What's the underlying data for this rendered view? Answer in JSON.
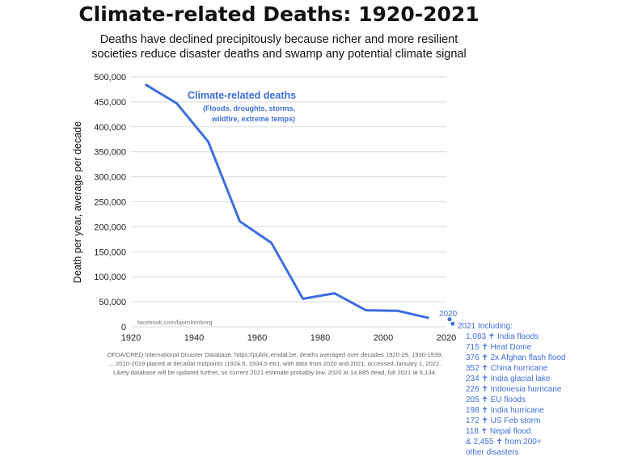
{
  "colors": {
    "series": "#3d6ee0",
    "grid": "#d9d9d9",
    "text": "#111111"
  },
  "chart_data": {
    "type": "line",
    "title": "Climate-related Deaths: 1920-2021",
    "subtitle": [
      "Deaths have declined precipitously because richer and more resilient",
      "societies reduce disaster deaths and swamp any potential climate signal"
    ],
    "ylabel": "Death per year, average per decade",
    "xlabel": "",
    "xlim": [
      1920,
      2020
    ],
    "ylim": [
      0,
      500000
    ],
    "grid": true,
    "x_ticks": [
      "1920",
      "1940",
      "1960",
      "1980",
      "2000",
      "2020"
    ],
    "y_ticks": [
      "0",
      "50,000",
      "100,000",
      "150,000",
      "200,000",
      "250,000",
      "300,000",
      "350,000",
      "400,000",
      "450,000",
      "500,000"
    ],
    "series": [
      {
        "name": "Climate-related deaths",
        "description": [
          "(Floods, droughts, storms,",
          "wildfire, extreme temps)"
        ],
        "x": [
          1924.5,
          1934.5,
          1944.5,
          1954.5,
          1964.5,
          1974.5,
          1984.5,
          1994.5,
          2004.5,
          2014.5
        ],
        "y": [
          485000,
          447000,
          370000,
          211000,
          168000,
          56000,
          67000,
          33000,
          32000,
          17500
        ]
      }
    ],
    "points": [
      {
        "label": "2020",
        "x": 2020,
        "y": 14885
      },
      {
        "label": "",
        "x": 2021,
        "y": 6134
      }
    ],
    "watermark": "facebook.com/bjornlomborg",
    "source_note": [
      "OFDA/CRED International Disaster Database, https://public.emdat.be, deaths averaged over decades 1920-29, 1930-1939,",
      "... 2010-2019 placed at decadal midpoints (1924.5, 1934.5 etc), with data from 2020 and 2021, accessed January 1, 2022.",
      "Likely database will be updated further, so current 2021 estimate probably low. 2020 at 14,885 dead, full 2021 at 6,134."
    ],
    "annotation_2021": [
      "2021 Including:",
      "1,083 ✝ India floods",
      "715 ✝ Heat Dome",
      "376 ✝ 2x Afghan flash flood",
      "352 ✝ China hurricane",
      "234 ✝ India glacial lake",
      "226 ✝ Indonesia hurricane",
      "205 ✝ EU floods",
      "198 ✝ India hurricane",
      "172 ✝ US Feb storm",
      "118 ✝ Nepal flood",
      "& 2,455 ✝ from 200+",
      "other disasters"
    ]
  }
}
